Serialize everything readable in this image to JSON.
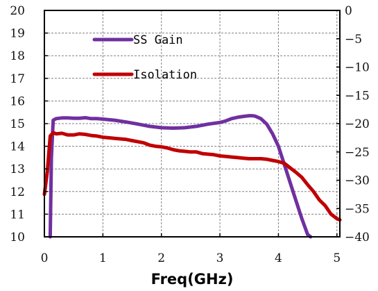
{
  "chart_data": {
    "type": "line",
    "title": "",
    "xlabel": "Freq(GHz)",
    "ylabel": "",
    "y2label": "",
    "xlim": [
      0,
      5.05
    ],
    "ylim": [
      10,
      20
    ],
    "y2lim": [
      -40,
      0
    ],
    "x_ticks": [
      0,
      1,
      2,
      3,
      4,
      5
    ],
    "y_ticks": [
      10,
      11,
      12,
      13,
      14,
      15,
      16,
      17,
      18,
      19,
      20
    ],
    "y2_ticks": [
      0,
      -5,
      -10,
      -15,
      -20,
      -25,
      -30,
      -35,
      -40
    ],
    "grid": true,
    "legend_position": "upper-left inside plot",
    "series": [
      {
        "name": "SS Gain",
        "axis": "left",
        "color": "#7030a0",
        "x": [
          0.1,
          0.12,
          0.15,
          0.2,
          0.3,
          0.4,
          0.5,
          0.6,
          0.7,
          0.8,
          0.9,
          1.0,
          1.2,
          1.4,
          1.6,
          1.8,
          2.0,
          2.2,
          2.4,
          2.6,
          2.8,
          3.0,
          3.1,
          3.2,
          3.3,
          3.4,
          3.5,
          3.55,
          3.6,
          3.7,
          3.8,
          3.9,
          4.0,
          4.1,
          4.2,
          4.3,
          4.4,
          4.5,
          4.55
        ],
        "y": [
          10.0,
          13.5,
          15.15,
          15.22,
          15.25,
          15.25,
          15.24,
          15.24,
          15.26,
          15.22,
          15.22,
          15.2,
          15.15,
          15.07,
          14.98,
          14.88,
          14.82,
          14.8,
          14.82,
          14.88,
          14.98,
          15.05,
          15.12,
          15.22,
          15.28,
          15.32,
          15.35,
          15.35,
          15.33,
          15.22,
          14.98,
          14.55,
          14.0,
          13.2,
          12.4,
          11.6,
          10.8,
          10.1,
          9.8
        ]
      },
      {
        "name": "Isolation",
        "axis": "right",
        "color": "#c00000",
        "x": [
          0.0,
          0.05,
          0.1,
          0.15,
          0.2,
          0.3,
          0.4,
          0.5,
          0.6,
          0.7,
          0.8,
          0.9,
          1.0,
          1.1,
          1.2,
          1.3,
          1.4,
          1.5,
          1.6,
          1.7,
          1.8,
          1.9,
          2.0,
          2.1,
          2.2,
          2.3,
          2.4,
          2.5,
          2.6,
          2.7,
          2.8,
          2.9,
          3.0,
          3.1,
          3.2,
          3.3,
          3.4,
          3.5,
          3.6,
          3.7,
          3.8,
          3.9,
          4.0,
          4.1,
          4.2,
          4.3,
          4.4,
          4.5,
          4.6,
          4.7,
          4.8,
          4.9,
          5.0,
          5.05
        ],
        "y": [
          -32.5,
          -28.5,
          -22.2,
          -21.6,
          -21.8,
          -21.7,
          -22.0,
          -22.0,
          -21.8,
          -21.9,
          -22.1,
          -22.2,
          -22.4,
          -22.5,
          -22.6,
          -22.7,
          -22.8,
          -23.0,
          -23.2,
          -23.4,
          -23.8,
          -24.0,
          -24.1,
          -24.3,
          -24.6,
          -24.8,
          -24.9,
          -25.0,
          -25.0,
          -25.3,
          -25.4,
          -25.5,
          -25.7,
          -25.8,
          -25.9,
          -26.0,
          -26.1,
          -26.2,
          -26.2,
          -26.2,
          -26.3,
          -26.5,
          -26.7,
          -27.0,
          -27.8,
          -28.6,
          -29.5,
          -30.8,
          -32.0,
          -33.5,
          -34.5,
          -36.0,
          -36.8,
          -37.0
        ]
      }
    ]
  }
}
